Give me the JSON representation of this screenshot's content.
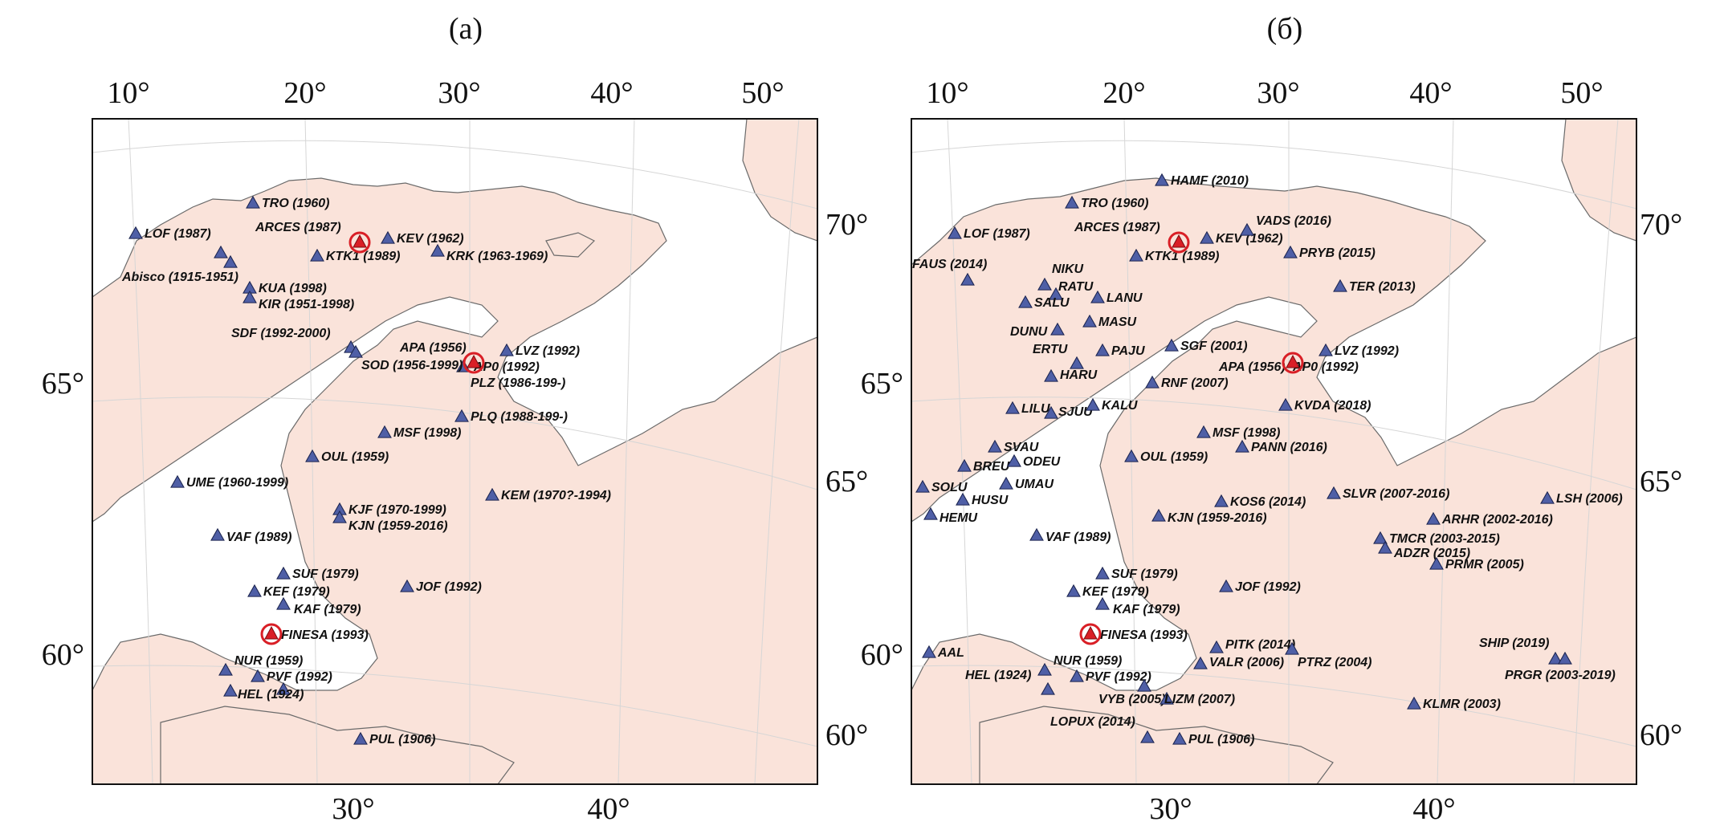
{
  "panels": [
    {
      "title": "(a)",
      "top_ticks": [
        "10°",
        "20°",
        "30°",
        "40°",
        "50°"
      ],
      "bottom_ticks": [
        "30°",
        "40°"
      ],
      "left_ticks": [
        "65°",
        "60°"
      ],
      "right_ticks": [
        "70°",
        "65°",
        "60°"
      ],
      "arrays": [
        "ARCES (1987)",
        "APA (1956)",
        "FINESA (1993)"
      ],
      "stations": [
        "TRO (1960)",
        "LOF (1987)",
        "ARCES (1987)",
        "KEV (1962)",
        "KTK1 (1989)",
        "KRK (1963-1969)",
        "Abisco (1915-1951)",
        "KUA (1998)",
        "KIR (1951-1998)",
        "SDF (1992-2000)",
        "APA (1956)",
        "SOD (1956-1999)",
        "AP0 (1992)",
        "LVZ (1992)",
        "PLZ (1986-199-)",
        "PLQ (1988-199-)",
        "MSF (1998)",
        "OUL (1959)",
        "UME (1960-1999)",
        "KEM (1970?-1994)",
        "KJF (1970-1999)",
        "KJN (1959-2016)",
        "VAF (1989)",
        "SUF (1979)",
        "JOF (1992)",
        "KEF (1979)",
        "KAF (1979)",
        "FINESA (1993)",
        "NUR (1959)",
        "PVF (1992)",
        "HEL (1924)",
        "PUL (1906)"
      ]
    },
    {
      "title": "(б)",
      "top_ticks": [
        "10°",
        "20°",
        "30°",
        "40°",
        "50°"
      ],
      "bottom_ticks": [
        "30°",
        "40°"
      ],
      "left_ticks": [
        "65°",
        "60°"
      ],
      "right_ticks": [
        "70°",
        "65°",
        "60°"
      ],
      "arrays": [
        "ARCES 1987",
        "APA 1956",
        "FINESA 1993"
      ],
      "stations": [
        "HAMF (2010)",
        "TRO (1960)",
        "LOF (1987)",
        "ARCES (1987)",
        "KEV (1962)",
        "VADS (2016)",
        "KTK1 (1989)",
        "PRYB (2015)",
        "FAUS (2014)",
        "NIKU",
        "RATU",
        "SALU",
        "LANU",
        "TER (2013)",
        "DUNU",
        "MASU",
        "ERTU",
        "PAJU",
        "SGF (2001)",
        "LVZ (1992)",
        "APA (1956)",
        "AP0 (1992)",
        "HARU",
        "RNF (2007)",
        "LILU",
        "SJUU",
        "KALU",
        "KVDA (2018)",
        "MSF (1998)",
        "SVAU",
        "PANN (2016)",
        "BREU",
        "ODEU",
        "OUL (1959)",
        "UMAU",
        "SOLU",
        "HUSU",
        "SLVR (2007-2016)",
        "LSH (2006)",
        "KOS6 (2014)",
        "HEMU",
        "KJN (1959-2016)",
        "ARHR (2002-2016)",
        "TMCR (2003-2015)",
        "VAF (1989)",
        "ADZR (2015)",
        "PRMR (2005)",
        "SUF (1979)",
        "JOF (1992)",
        "KEF (1979)",
        "KAF (1979)",
        "FINESA (1993)",
        "PITK (2014)",
        "SHIP (2019)",
        "AAL",
        "NUR (1959)",
        "VALR (2006)",
        "PTRZ (2004)",
        "PRGR (2003-2019)",
        "HEL (1924)",
        "PVF (1992)",
        "VYB (2005)",
        "LIZM (2007)",
        "KLMR (2003)",
        "LOPUX (2014)",
        "PUL (1906)"
      ]
    }
  ],
  "colors": {
    "land": "#fae3da",
    "station": "#4f5fa6",
    "array": "#d91f26"
  }
}
